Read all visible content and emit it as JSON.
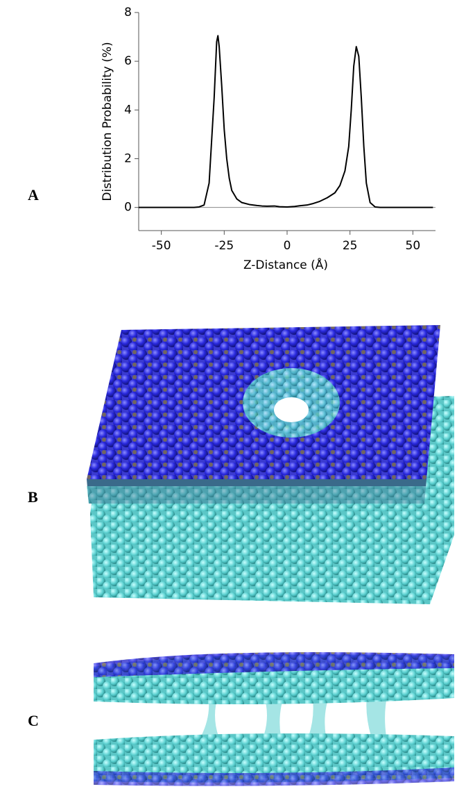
{
  "panels": [
    {
      "label": "A"
    },
    {
      "label": "B"
    },
    {
      "label": "C"
    }
  ],
  "chart_data": {
    "type": "line",
    "xlabel": "Z-Distance (Å)",
    "ylabel": "Distribution Probability (%)",
    "x": [
      -59,
      -37,
      -35,
      -33,
      -31,
      -29,
      -28,
      -27.5,
      -27,
      -26,
      -25,
      -24,
      -23,
      -22,
      -20,
      -18,
      -15,
      -12,
      -10,
      -8,
      -5,
      -3,
      0,
      3,
      5,
      8,
      10,
      13,
      16,
      19,
      21,
      23,
      24.5,
      25.5,
      26.5,
      27.5,
      28.5,
      29.5,
      30.5,
      31.5,
      33,
      35,
      37,
      58
    ],
    "values": [
      0,
      0,
      0.02,
      0.1,
      1.0,
      4.5,
      6.8,
      7.05,
      6.6,
      5.0,
      3.2,
      2.0,
      1.2,
      0.7,
      0.35,
      0.2,
      0.12,
      0.08,
      0.06,
      0.05,
      0.06,
      0.03,
      0.02,
      0.04,
      0.07,
      0.1,
      0.15,
      0.25,
      0.4,
      0.6,
      0.9,
      1.5,
      2.5,
      4.0,
      5.8,
      6.6,
      6.2,
      4.5,
      2.5,
      1.0,
      0.2,
      0.02,
      0,
      0
    ],
    "color": "#000000",
    "xlim": [
      -59,
      59
    ],
    "ylim": [
      -0.95,
      8
    ],
    "xticks": [
      -50,
      -25,
      0,
      25,
      50
    ],
    "yticks": [
      0,
      2,
      4,
      6,
      8
    ]
  }
}
